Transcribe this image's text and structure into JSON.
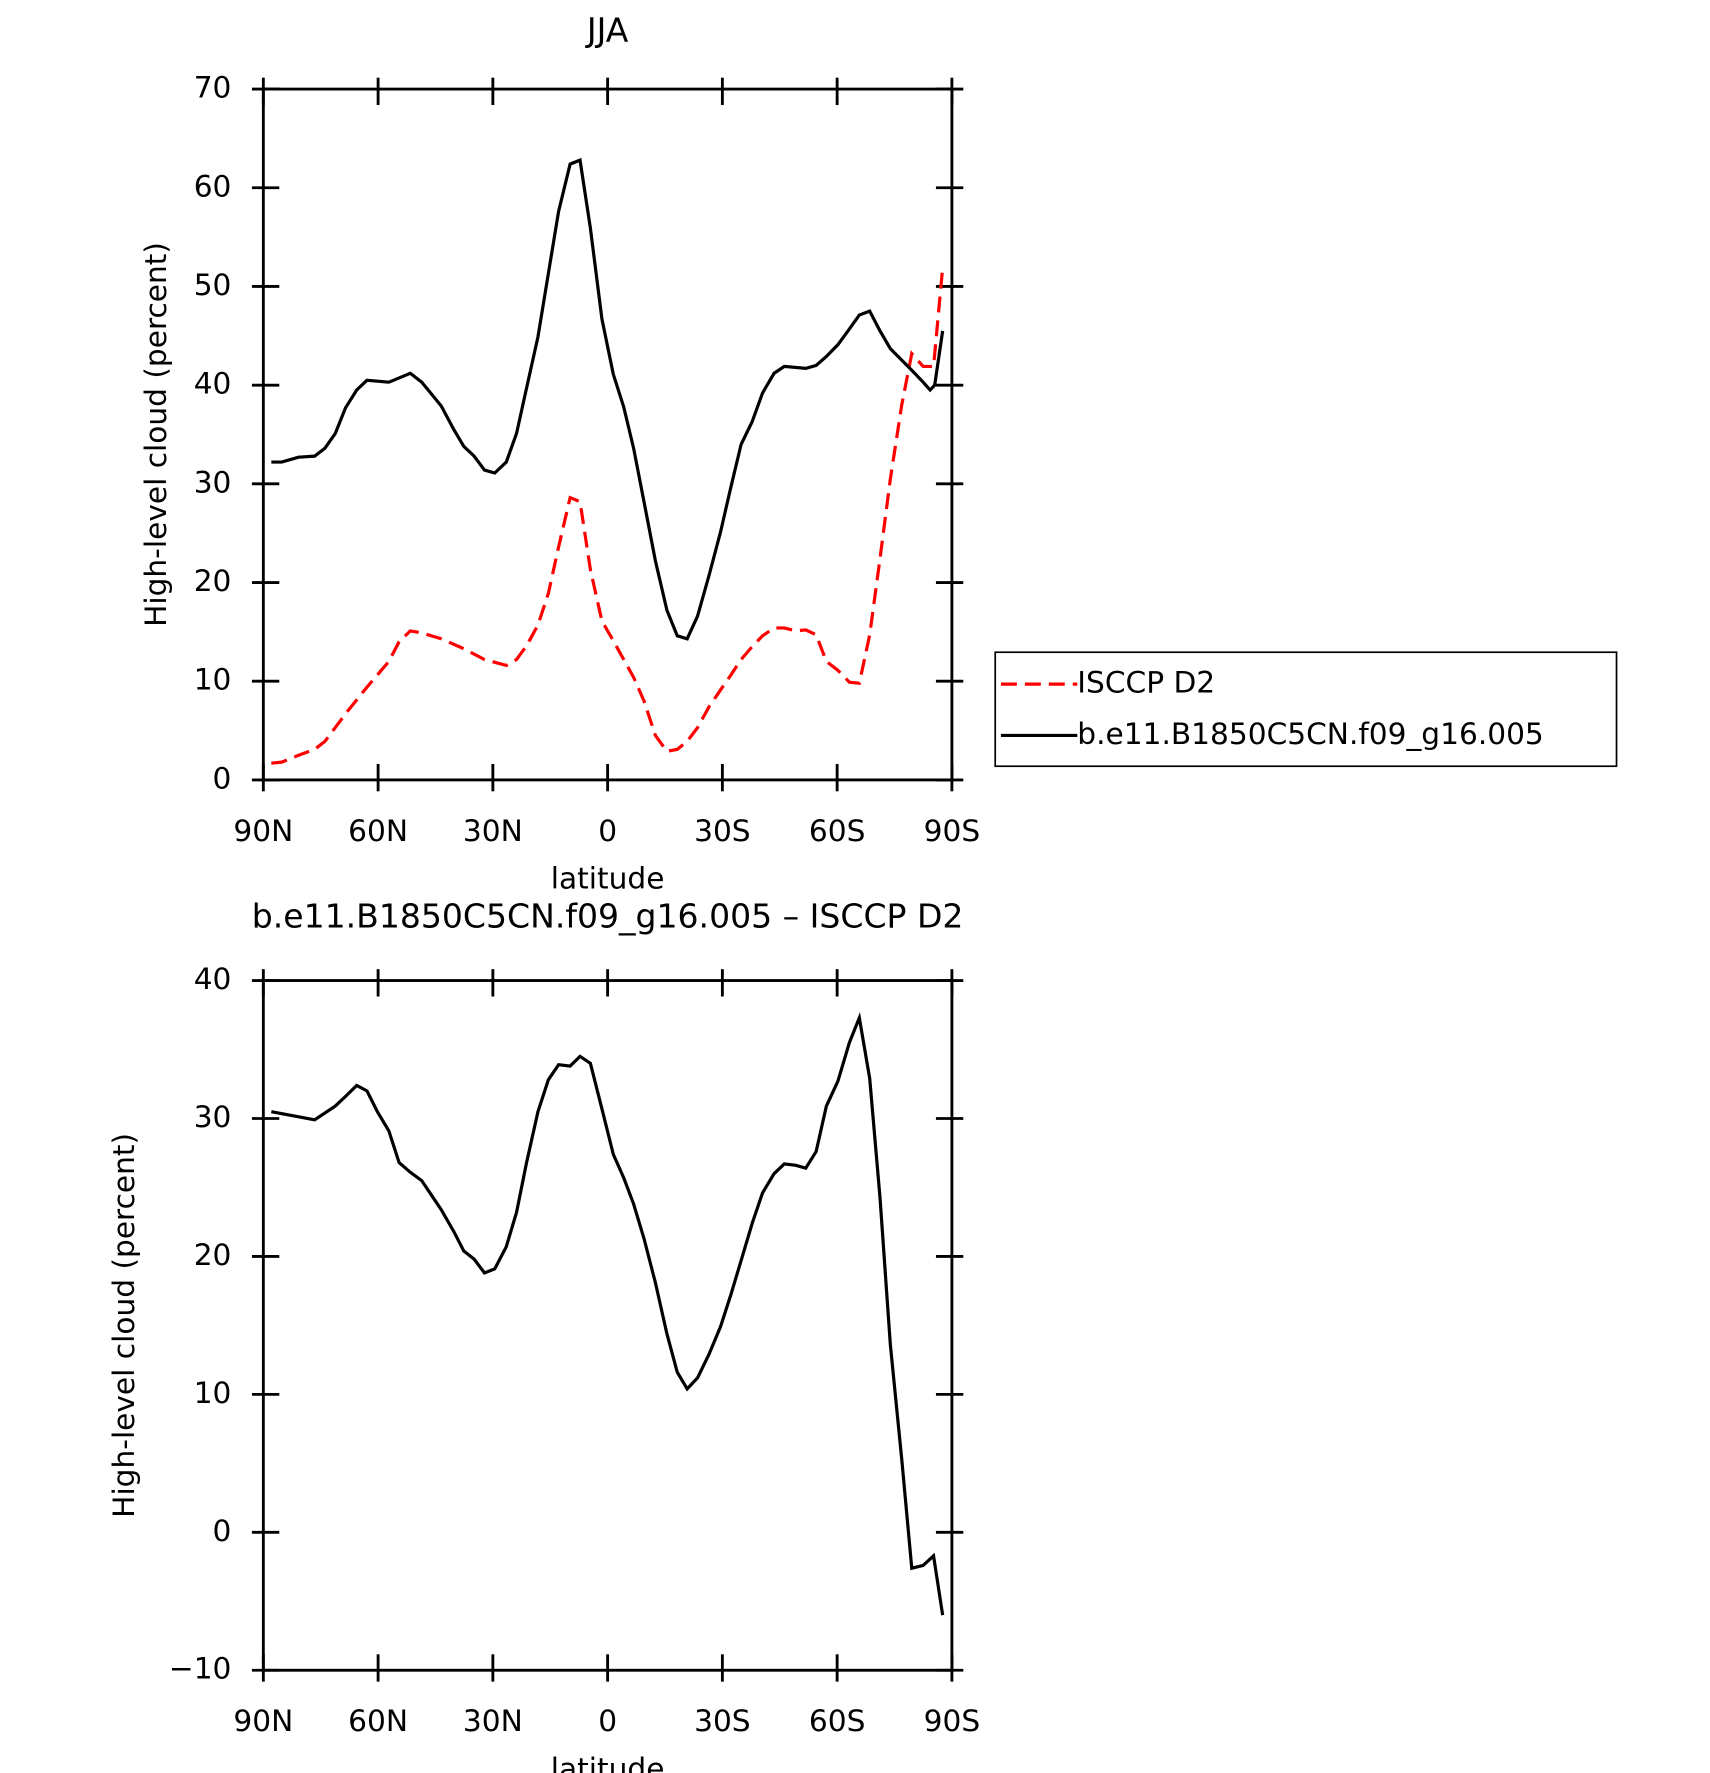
{
  "chart_data": [
    {
      "type": "line",
      "title": "JJA",
      "x_label": "latitude",
      "y_label": "High-level cloud (percent)",
      "xlim": [
        90,
        -90
      ],
      "xticks": [
        {
          "value": 90,
          "label": "90N"
        },
        {
          "value": 60,
          "label": "60N"
        },
        {
          "value": 30,
          "label": "30N"
        },
        0,
        {
          "value": -30,
          "label": "30S"
        },
        {
          "value": -60,
          "label": "60S"
        },
        {
          "value": -90,
          "label": "90S"
        }
      ],
      "ylim": [
        0,
        70
      ],
      "yticks": [
        0,
        10,
        20,
        30,
        40,
        50,
        60,
        70
      ],
      "legend": "right",
      "series": [
        {
          "name": "ISCCP D2",
          "color": "#ff0000",
          "dashed": true,
          "x": [
            87.9,
            85.2,
            80.8,
            76.6,
            73.9,
            71.2,
            68.5,
            62.9,
            57.2,
            54.5,
            51.6,
            48.6,
            43.5,
            37.6,
            32.2,
            26.5,
            23.8,
            21.2,
            18.2,
            15.5,
            12.8,
            9.8,
            7.2,
            4.5,
            1.5,
            -1.5,
            -4.2,
            -6.8,
            -9.5,
            -12.5,
            -15.5,
            -18.2,
            -20.8,
            -23.5,
            -26.5,
            -29.5,
            -32.2,
            -34.9,
            -37.8,
            -40.5,
            -43.5,
            -46.2,
            -49.2,
            -51.8,
            -54.5,
            -57.2,
            -60.2,
            -63.2,
            -65.8,
            -68.5,
            -71.2,
            -73.9,
            -76.9,
            -79.5,
            -82.5,
            -85.2,
            -87.6
          ],
          "values": [
            1.7,
            1.8,
            2.5,
            3.1,
            3.9,
            5.3,
            6.7,
            9.4,
            12.0,
            14.0,
            15.1,
            14.9,
            14.3,
            13.3,
            12.2,
            11.6,
            12.2,
            13.6,
            15.7,
            18.9,
            23.6,
            28.6,
            28.2,
            21.3,
            16.1,
            14.1,
            12.2,
            10.4,
            8.0,
            4.5,
            2.9,
            3.1,
            3.9,
            5.3,
            7.4,
            9.1,
            10.6,
            12.2,
            13.5,
            14.6,
            15.4,
            15.4,
            15.1,
            15.2,
            14.7,
            12.0,
            11.1,
            9.9,
            9.8,
            14.7,
            22.4,
            30.5,
            38.0,
            43.2,
            41.9,
            41.9,
            51.9
          ]
        },
        {
          "name": "b.e11.B1850C5CN.f09_g16.005",
          "color": "#000000",
          "dashed": false,
          "x": [
            87.9,
            85.2,
            80.8,
            76.6,
            73.9,
            71.2,
            68.5,
            65.6,
            62.9,
            57.2,
            51.6,
            48.6,
            43.5,
            40.2,
            37.6,
            34.9,
            32.2,
            29.5,
            26.5,
            23.8,
            21.2,
            18.2,
            15.5,
            12.8,
            9.8,
            7.2,
            4.5,
            1.5,
            -1.5,
            -4.2,
            -6.8,
            -9.5,
            -12.5,
            -15.5,
            -18.2,
            -20.8,
            -23.5,
            -26.5,
            -29.5,
            -32.2,
            -34.9,
            -37.8,
            -40.5,
            -43.5,
            -46.2,
            -51.8,
            -54.5,
            -57.2,
            -60.2,
            -63.2,
            -65.8,
            -68.5,
            -71.2,
            -73.9,
            -79.5,
            -82.5,
            -84.3,
            -85.5,
            -87.6
          ],
          "values": [
            32.2,
            32.2,
            32.7,
            32.8,
            33.6,
            35.1,
            37.7,
            39.5,
            40.5,
            40.3,
            41.2,
            40.3,
            37.9,
            35.5,
            33.8,
            32.8,
            31.4,
            31.1,
            32.2,
            35.1,
            39.7,
            44.9,
            51.3,
            57.6,
            62.4,
            62.8,
            55.9,
            46.7,
            41.1,
            37.8,
            33.6,
            28.2,
            22.2,
            17.2,
            14.6,
            14.3,
            16.6,
            20.7,
            25.1,
            29.6,
            34.0,
            36.3,
            39.2,
            41.2,
            41.9,
            41.7,
            42.0,
            42.9,
            44.1,
            45.7,
            47.1,
            47.5,
            45.5,
            43.7,
            41.5,
            40.3,
            39.5,
            40.0,
            45.5
          ]
        }
      ]
    },
    {
      "type": "line",
      "title": "b.e11.B1850C5CN.f09_g16.005 – ISCCP D2",
      "x_label": "latitude",
      "y_label": "High-level cloud (percent)",
      "xlim": [
        90,
        -90
      ],
      "xticks": [
        {
          "value": 90,
          "label": "90N"
        },
        {
          "value": 60,
          "label": "60N"
        },
        {
          "value": 30,
          "label": "30N"
        },
        0,
        {
          "value": -30,
          "label": "30S"
        },
        {
          "value": -60,
          "label": "60S"
        },
        {
          "value": -90,
          "label": "90S"
        }
      ],
      "ylim": [
        -10,
        40
      ],
      "yticks": [
        {
          "value": -10,
          "label": "−10"
        },
        0,
        10,
        20,
        30,
        40
      ],
      "series": [
        {
          "color": "#000000",
          "dashed": false,
          "x": [
            87.9,
            76.6,
            71.2,
            68.5,
            65.6,
            62.9,
            60.2,
            57.2,
            54.5,
            51.6,
            48.6,
            46.2,
            43.5,
            40.2,
            37.6,
            34.9,
            32.2,
            29.5,
            26.5,
            23.8,
            21.2,
            18.2,
            15.5,
            12.8,
            9.8,
            7.2,
            4.5,
            1.5,
            -1.5,
            -4.2,
            -6.8,
            -9.5,
            -12.5,
            -15.5,
            -18.2,
            -20.8,
            -23.5,
            -26.5,
            -29.5,
            -32.2,
            -34.9,
            -37.8,
            -40.5,
            -43.5,
            -46.2,
            -49.2,
            -51.8,
            -54.5,
            -57.2,
            -60.2,
            -63.2,
            -65.8,
            -68.5,
            -71.2,
            -73.9,
            -76.9,
            -79.5,
            -82.5,
            -85.2,
            -87.6
          ],
          "values": [
            30.5,
            29.9,
            30.9,
            31.6,
            32.4,
            32.0,
            30.5,
            29.1,
            26.8,
            26.1,
            25.5,
            24.5,
            23.4,
            21.8,
            20.4,
            19.8,
            18.8,
            19.1,
            20.7,
            23.2,
            26.8,
            30.5,
            32.8,
            33.9,
            33.8,
            34.5,
            34.0,
            30.7,
            27.4,
            25.7,
            23.8,
            21.3,
            18.1,
            14.4,
            11.6,
            10.4,
            11.2,
            12.9,
            14.9,
            17.2,
            19.7,
            22.4,
            24.6,
            26.0,
            26.7,
            26.6,
            26.4,
            27.6,
            30.9,
            32.7,
            35.5,
            37.3,
            32.9,
            24.3,
            13.6,
            5.3,
            -2.6,
            -2.4,
            -1.7,
            -6.0
          ]
        }
      ]
    }
  ]
}
